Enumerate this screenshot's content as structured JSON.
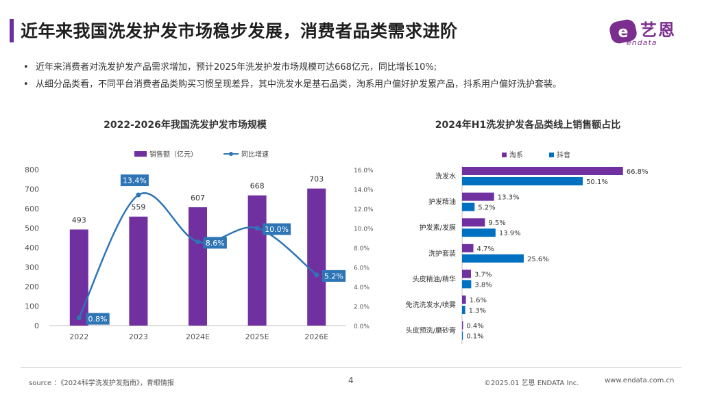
{
  "header": {
    "title": "近年来我国洗发护发市场稳步发展，消费者品类需求进阶",
    "accent_color": "#6B2FA0"
  },
  "logo": {
    "text": "艺恩",
    "sub": "endata",
    "color": "#7B2E8E"
  },
  "bullets": [
    "近年来消费者对洗发护发产品需求增加，预计2025年洗发护发市场规模可达668亿元，同比增长10%;",
    "从细分品类看，不同平台消费者品类购买习惯呈现差异，其中洗发水是基石品类，淘系用户偏好护发累产品，抖系用户偏好洗护套装。"
  ],
  "bullet_glyph": "•",
  "chart_data": [
    {
      "type": "bar",
      "title": "2022-2026年我国洗发护发市场规模",
      "categories": [
        "2022",
        "2023",
        "2024E",
        "2025E",
        "2026E"
      ],
      "series": [
        {
          "name": "销售额（亿元）",
          "type": "bar",
          "values": [
            493,
            559,
            607,
            668,
            703
          ],
          "color": "#7030A0"
        },
        {
          "name": "同比增速",
          "type": "line",
          "values": [
            0.8,
            13.4,
            8.6,
            10.0,
            5.2
          ],
          "value_labels": [
            "0.8%",
            "13.4%",
            "8.6%",
            "10.0%",
            "5.2%"
          ],
          "color": "#2E75B6"
        }
      ],
      "y_left": {
        "range": [
          0,
          800
        ],
        "ticks": [
          "0",
          "100",
          "200",
          "300",
          "400",
          "500",
          "600",
          "700",
          "800"
        ]
      },
      "y_right": {
        "range": [
          0,
          16
        ],
        "ticks": [
          "0.0%",
          "2.0%",
          "4.0%",
          "6.0%",
          "8.0%",
          "10.0%",
          "12.0%",
          "14.0%",
          "16.0%"
        ]
      },
      "legend_position": "top",
      "grid": false
    },
    {
      "type": "bar",
      "orientation": "horizontal",
      "title": "2024年H1洗发护发各品类线上销售额占比",
      "categories": [
        "洗发水",
        "护发精油",
        "护发素/发膜",
        "洗护套装",
        "头皮精油/精华",
        "免洗洗发水/喷雾",
        "头皮预洗/磨砂膏"
      ],
      "series": [
        {
          "name": "淘系",
          "values": [
            66.8,
            13.3,
            9.5,
            4.7,
            3.7,
            1.6,
            0.4
          ],
          "value_labels": [
            "66.8%",
            "13.3%",
            "9.5%",
            "4.7%",
            "3.7%",
            "1.6%",
            "0.4%"
          ],
          "color": "#7030A0"
        },
        {
          "name": "抖音",
          "values": [
            50.1,
            5.2,
            13.9,
            25.6,
            3.8,
            1.3,
            0.1
          ],
          "value_labels": [
            "50.1%",
            "5.2%",
            "13.9%",
            "25.6%",
            "3.8%",
            "1.3%",
            "0.1%"
          ],
          "color": "#0070C0"
        }
      ],
      "x_range": [
        0,
        70
      ],
      "legend_position": "top",
      "grid": false
    }
  ],
  "footer": {
    "source": "source ：《2024科学洗发护发指南》，青眼情报",
    "page": "4",
    "copyright": "©2025.01 艺恩 ENDATA Inc.",
    "url": "www.endata.com.cn"
  }
}
